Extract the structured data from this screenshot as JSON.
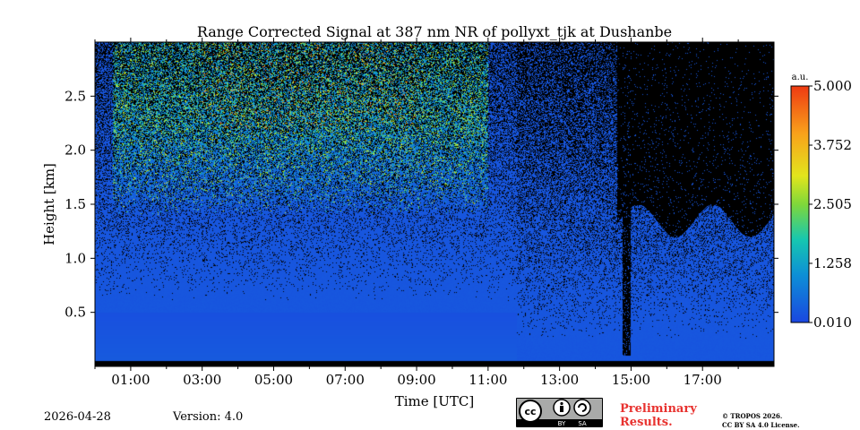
{
  "page": {
    "title": "Range Corrected Signal at 387 nm NR of pollyxt_tjk at Dushanbe",
    "date": "2026-04-28",
    "version": "Version: 4.0",
    "preliminary_line1": "Preliminary",
    "preliminary_line2": "Results.",
    "copyright_line1": "© TROPOS 2026.",
    "copyright_line2": "CC BY SA 4.0 License.",
    "license_badge": {
      "cc": "cc",
      "by": "BY",
      "sa": "SA",
      "badge_color": "#a9aaa9"
    }
  },
  "chart_data": {
    "type": "heatmap",
    "title": "Range Corrected Signal at 387 nm NR of pollyxt_tjk at Dushanbe",
    "xlabel": "Time [UTC]",
    "ylabel": "Height [km]",
    "xlim": [
      0,
      19
    ],
    "ylim": [
      0,
      3.0
    ],
    "x_ticks": [
      {
        "value": 1,
        "label": "01:00"
      },
      {
        "value": 3,
        "label": "03:00"
      },
      {
        "value": 5,
        "label": "05:00"
      },
      {
        "value": 7,
        "label": "07:00"
      },
      {
        "value": 9,
        "label": "09:00"
      },
      {
        "value": 11,
        "label": "11:00"
      },
      {
        "value": 13,
        "label": "13:00"
      },
      {
        "value": 15,
        "label": "15:00"
      },
      {
        "value": 17,
        "label": "17:00"
      }
    ],
    "x_minor_ticks": [
      0,
      2,
      4,
      6,
      8,
      10,
      12,
      14,
      16,
      18
    ],
    "y_ticks": [
      {
        "value": 0.5,
        "label": "0.5"
      },
      {
        "value": 1.0,
        "label": "1.0"
      },
      {
        "value": 1.5,
        "label": "1.5"
      },
      {
        "value": 2.0,
        "label": "2.0"
      },
      {
        "value": 2.5,
        "label": "2.5"
      }
    ],
    "colorbar": {
      "unit": "a.u.",
      "range": [
        0.01,
        5.0
      ],
      "ticks": [
        {
          "value": 0.01,
          "label": "0.010"
        },
        {
          "value": 1.258,
          "label": "1.258"
        },
        {
          "value": 2.505,
          "label": "2.505"
        },
        {
          "value": 3.752,
          "label": "3.752"
        },
        {
          "value": 5.0,
          "label": "5.000"
        }
      ],
      "colors": [
        "#1a47e0",
        "#0d8fd6",
        "#16c7b0",
        "#7fd83a",
        "#e2e51c",
        "#f9a11b",
        "#ee3a12"
      ]
    },
    "background_signal": 0.15,
    "features": [
      {
        "name": "near-surface layer",
        "start": 0,
        "end": 19,
        "top_km": 0.05,
        "value": 0.05
      },
      {
        "name": "aerosol layer",
        "start": 0,
        "end": 11.8,
        "top_km": 0.5,
        "value": 0.4
      },
      {
        "name": "upper signal",
        "start": 0.5,
        "end": 11.0,
        "bottom_km": 1.5,
        "value": 1.4
      },
      {
        "name": "cloud/no data",
        "start": 14.7,
        "end": 15.0,
        "bottom_km": 0.1,
        "value": 0
      },
      {
        "name": "no-signal region",
        "start": 14.6,
        "end": 19,
        "bottom_km": 1.4,
        "value": 0
      }
    ]
  }
}
